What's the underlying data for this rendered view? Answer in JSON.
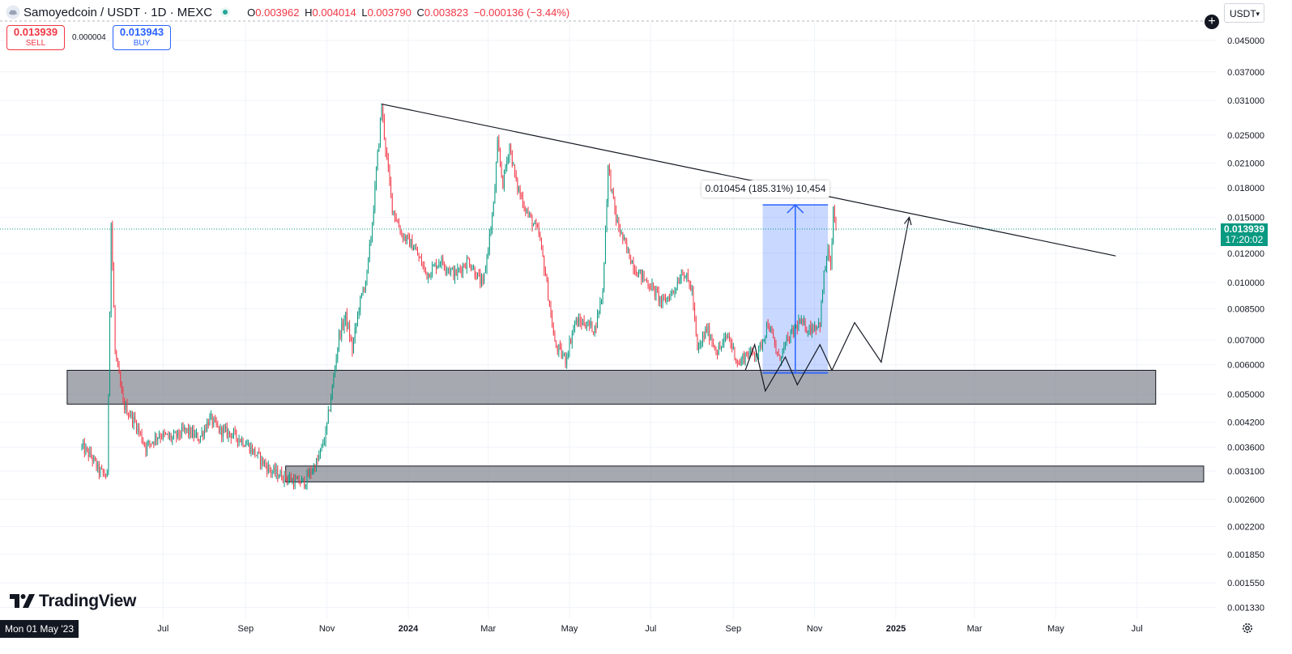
{
  "header": {
    "symbol_title": "Samoyedcoin / USDT · 1D · MEXC",
    "ohlc": [
      {
        "key": "O",
        "value": "0.003962"
      },
      {
        "key": "H",
        "value": "0.004014"
      },
      {
        "key": "L",
        "value": "0.003790"
      },
      {
        "key": "C",
        "value": "0.003823"
      }
    ],
    "change": "−0.000136 (−3.44%)",
    "status_icon": "green-dot-icon",
    "symbol_icon": "samoyedcoin-logo-icon"
  },
  "trade": {
    "sell_price": "0.013939",
    "sell_label": "SELL",
    "spread": "0.000004",
    "buy_price": "0.013943",
    "buy_label": "BUY"
  },
  "toolbar": {
    "currency": "USDT",
    "plus_icon": "plus-circle-icon",
    "settings_icon": "gear-icon"
  },
  "last_price": {
    "value": "0.013939",
    "countdown": "17:20:02"
  },
  "crosshair_date": "Mon 01 May '23",
  "brand": "TradingView",
  "colors": {
    "up": "#089981",
    "down": "#f23645",
    "accent": "#2962ff",
    "background": "#ffffff",
    "grid": "#f0f3fa"
  },
  "chart_data": {
    "type": "candlestick",
    "scale": "log",
    "ylim": [
      0.0012,
      0.05
    ],
    "x_range": [
      "2023-05-01",
      "2025-07-31"
    ],
    "x_tick_labels": [
      {
        "label": "Jul",
        "date": "2023-07-01"
      },
      {
        "label": "Sep",
        "date": "2023-09-01"
      },
      {
        "label": "Nov",
        "date": "2023-11-01"
      },
      {
        "label": "2024",
        "date": "2024-01-01",
        "bold": true
      },
      {
        "label": "Mar",
        "date": "2024-03-01"
      },
      {
        "label": "May",
        "date": "2024-05-01"
      },
      {
        "label": "Jul",
        "date": "2024-07-01"
      },
      {
        "label": "Sep",
        "date": "2024-09-01"
      },
      {
        "label": "Nov",
        "date": "2024-11-01"
      },
      {
        "label": "2025",
        "date": "2025-01-01",
        "bold": true
      },
      {
        "label": "Mar",
        "date": "2025-03-01"
      },
      {
        "label": "May",
        "date": "2025-05-01"
      },
      {
        "label": "Jul",
        "date": "2025-07-01"
      }
    ],
    "y_tick_labels": [
      "0.045000",
      "0.037000",
      "0.031000",
      "0.025000",
      "0.021000",
      "0.018000",
      "0.015000",
      "0.012000",
      "0.010000",
      "0.008500",
      "0.007000",
      "0.006000",
      "0.005000",
      "0.004200",
      "0.003600",
      "0.003100",
      "0.002600",
      "0.002200",
      "0.001850",
      "0.001550",
      "0.001330"
    ],
    "price_path": [
      [
        "2023-05-01",
        0.0036
      ],
      [
        "2023-05-08",
        0.0034
      ],
      [
        "2023-05-14",
        0.0031
      ],
      [
        "2023-05-20",
        0.003
      ],
      [
        "2023-05-23",
        0.0145
      ],
      [
        "2023-05-26",
        0.0065
      ],
      [
        "2023-06-01",
        0.0047
      ],
      [
        "2023-06-10",
        0.0042
      ],
      [
        "2023-06-18",
        0.0036
      ],
      [
        "2023-06-28",
        0.0039
      ],
      [
        "2023-07-08",
        0.0038
      ],
      [
        "2023-07-18",
        0.004
      ],
      [
        "2023-07-28",
        0.0038
      ],
      [
        "2023-08-05",
        0.0043
      ],
      [
        "2023-08-12",
        0.004
      ],
      [
        "2023-08-22",
        0.0039
      ],
      [
        "2023-09-01",
        0.0037
      ],
      [
        "2023-09-10",
        0.0034
      ],
      [
        "2023-09-20",
        0.0031
      ],
      [
        "2023-09-30",
        0.003
      ],
      [
        "2023-10-08",
        0.0029
      ],
      [
        "2023-10-15",
        0.0029
      ],
      [
        "2023-10-25",
        0.0033
      ],
      [
        "2023-10-31",
        0.0039
      ],
      [
        "2023-11-05",
        0.0052
      ],
      [
        "2023-11-10",
        0.0072
      ],
      [
        "2023-11-15",
        0.0081
      ],
      [
        "2023-11-20",
        0.0066
      ],
      [
        "2023-11-25",
        0.0086
      ],
      [
        "2023-12-01",
        0.0105
      ],
      [
        "2023-12-05",
        0.0145
      ],
      [
        "2023-12-09",
        0.022
      ],
      [
        "2023-12-12",
        0.03
      ],
      [
        "2023-12-15",
        0.023
      ],
      [
        "2023-12-20",
        0.016
      ],
      [
        "2023-12-27",
        0.0135
      ],
      [
        "2024-01-05",
        0.0125
      ],
      [
        "2024-01-15",
        0.0105
      ],
      [
        "2024-01-25",
        0.0115
      ],
      [
        "2024-02-05",
        0.0105
      ],
      [
        "2024-02-15",
        0.0115
      ],
      [
        "2024-02-26",
        0.0098
      ],
      [
        "2024-03-05",
        0.016
      ],
      [
        "2024-03-08",
        0.0235
      ],
      [
        "2024-03-12",
        0.0185
      ],
      [
        "2024-03-17",
        0.0235
      ],
      [
        "2024-03-22",
        0.0185
      ],
      [
        "2024-03-30",
        0.0155
      ],
      [
        "2024-04-08",
        0.0135
      ],
      [
        "2024-04-13",
        0.0105
      ],
      [
        "2024-04-20",
        0.0068
      ],
      [
        "2024-04-28",
        0.0062
      ],
      [
        "2024-05-05",
        0.0078
      ],
      [
        "2024-05-12",
        0.0078
      ],
      [
        "2024-05-20",
        0.0075
      ],
      [
        "2024-05-26",
        0.0095
      ],
      [
        "2024-05-30",
        0.0205
      ],
      [
        "2024-06-05",
        0.0148
      ],
      [
        "2024-06-12",
        0.0125
      ],
      [
        "2024-06-20",
        0.0108
      ],
      [
        "2024-07-01",
        0.0098
      ],
      [
        "2024-07-10",
        0.0088
      ],
      [
        "2024-07-18",
        0.0095
      ],
      [
        "2024-07-25",
        0.0108
      ],
      [
        "2024-08-01",
        0.0095
      ],
      [
        "2024-08-05",
        0.0065
      ],
      [
        "2024-08-12",
        0.0075
      ],
      [
        "2024-08-20",
        0.0065
      ],
      [
        "2024-08-28",
        0.0072
      ],
      [
        "2024-09-05",
        0.006
      ],
      [
        "2024-09-10",
        0.0064
      ],
      [
        "2024-09-20",
        0.0065
      ],
      [
        "2024-09-27",
        0.0078
      ],
      [
        "2024-10-05",
        0.0062
      ],
      [
        "2024-10-10",
        0.0068
      ],
      [
        "2024-10-20",
        0.0078
      ],
      [
        "2024-10-28",
        0.0075
      ],
      [
        "2024-11-05",
        0.0078
      ],
      [
        "2024-11-08",
        0.0105
      ],
      [
        "2024-11-11",
        0.0122
      ],
      [
        "2024-11-13",
        0.0108
      ],
      [
        "2024-11-15",
        0.0155
      ],
      [
        "2024-11-17",
        0.01394
      ]
    ],
    "zones": [
      {
        "from": "2023-04-20",
        "to": "2025-07-15",
        "low": 0.0047,
        "high": 0.0058
      },
      {
        "from": "2023-10-01",
        "to": "2025-08-20",
        "low": 0.0029,
        "high": 0.0032
      }
    ],
    "trendline": [
      [
        "2023-12-12",
        0.0303
      ],
      [
        "2025-06-15",
        0.0118
      ]
    ],
    "projection": [
      [
        "2024-09-10",
        0.0058
      ],
      [
        "2024-09-17",
        0.0068
      ],
      [
        "2024-09-25",
        0.0051
      ],
      [
        "2024-10-10",
        0.0063
      ],
      [
        "2024-10-19",
        0.0053
      ],
      [
        "2024-11-05",
        0.0068
      ],
      [
        "2024-11-14",
        0.0058
      ],
      [
        "2024-12-01",
        0.0078
      ],
      [
        "2024-12-21",
        0.0061
      ],
      [
        "2025-01-11",
        0.015
      ]
    ],
    "measure": {
      "from": "2024-09-23",
      "to": "2024-11-11",
      "low": 0.0057,
      "high": 0.0162,
      "label": "0.010454 (185.31%) 10,454"
    },
    "last_price_line": 0.013939
  }
}
